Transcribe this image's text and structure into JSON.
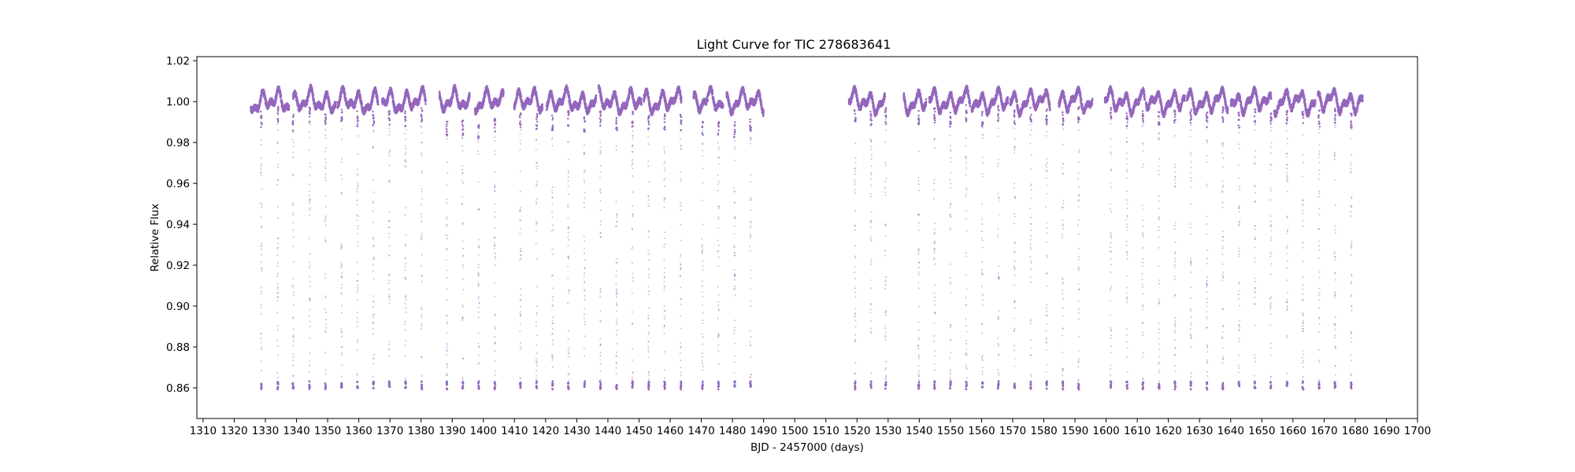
{
  "chart_data": {
    "type": "scatter",
    "title": "Light Curve for TIC 278683641",
    "xlabel": "BJD - 2457000 (days)",
    "ylabel": "Relative Flux",
    "xlim": [
      1308,
      1700
    ],
    "ylim": [
      0.845,
      1.022
    ],
    "xticks": [
      1310,
      1320,
      1330,
      1340,
      1350,
      1360,
      1370,
      1380,
      1390,
      1400,
      1410,
      1420,
      1430,
      1440,
      1450,
      1460,
      1470,
      1480,
      1490,
      1500,
      1510,
      1520,
      1530,
      1540,
      1550,
      1560,
      1570,
      1580,
      1590,
      1600,
      1610,
      1620,
      1630,
      1640,
      1650,
      1660,
      1670,
      1680,
      1690,
      1700
    ],
    "yticks": [
      0.86,
      0.88,
      0.9,
      0.92,
      0.94,
      0.96,
      0.98,
      1.0,
      1.02
    ],
    "ytick_labels": [
      "0.86",
      "0.88",
      "0.90",
      "0.92",
      "0.94",
      "0.96",
      "0.98",
      "1.00",
      "1.02"
    ],
    "grid": false,
    "legend": "none",
    "color": "#9467bd",
    "observation_segments": [
      [
        1325.3,
        1337.6
      ],
      [
        1338.9,
        1352.6
      ],
      [
        1353.2,
        1366.2
      ],
      [
        1367.5,
        1381.5
      ],
      [
        1385.9,
        1395.6
      ],
      [
        1397.3,
        1406.5
      ],
      [
        1409.9,
        1419.0
      ],
      [
        1420.3,
        1436.2
      ],
      [
        1437.0,
        1450.8
      ],
      [
        1451.5,
        1463.6
      ],
      [
        1467.5,
        1477.0
      ],
      [
        1478.1,
        1490.0
      ],
      [
        1517.4,
        1529.0
      ],
      [
        1535.0,
        1542.2
      ],
      [
        1543.2,
        1556.3
      ],
      [
        1556.8,
        1568.5
      ],
      [
        1569.2,
        1582.0
      ],
      [
        1584.8,
        1595.6
      ],
      [
        1599.6,
        1612.4
      ],
      [
        1612.8,
        1625.3
      ],
      [
        1626.0,
        1639.1
      ],
      [
        1640.0,
        1653.0
      ],
      [
        1654.0,
        1667.2
      ],
      [
        1668.0,
        1682.4
      ]
    ],
    "transit_times": [
      1328.7,
      1334.0,
      1338.9,
      1344.2,
      1349.3,
      1354.5,
      1359.6,
      1364.7,
      1369.8,
      1375.0,
      1380.2,
      1388.3,
      1393.4,
      1398.5,
      1403.7,
      1411.9,
      1417.1,
      1422.2,
      1427.3,
      1432.5,
      1437.6,
      1442.8,
      1447.9,
      1453.1,
      1458.2,
      1463.4,
      1470.4,
      1475.5,
      1480.7,
      1485.8,
      1519.4,
      1524.5,
      1529.2,
      1539.8,
      1544.9,
      1550.0,
      1555.1,
      1560.3,
      1565.4,
      1570.6,
      1575.8,
      1580.9,
      1586.1,
      1591.2,
      1601.5,
      1606.7,
      1611.8,
      1617.0,
      1622.1,
      1627.2,
      1632.4,
      1637.5,
      1642.7,
      1647.8,
      1652.9,
      1658.1,
      1663.2,
      1668.4,
      1673.5,
      1678.7
    ],
    "transit_min_flux": 0.86,
    "out_of_transit_flux": 1.0,
    "variability_amplitude": 0.006
  }
}
